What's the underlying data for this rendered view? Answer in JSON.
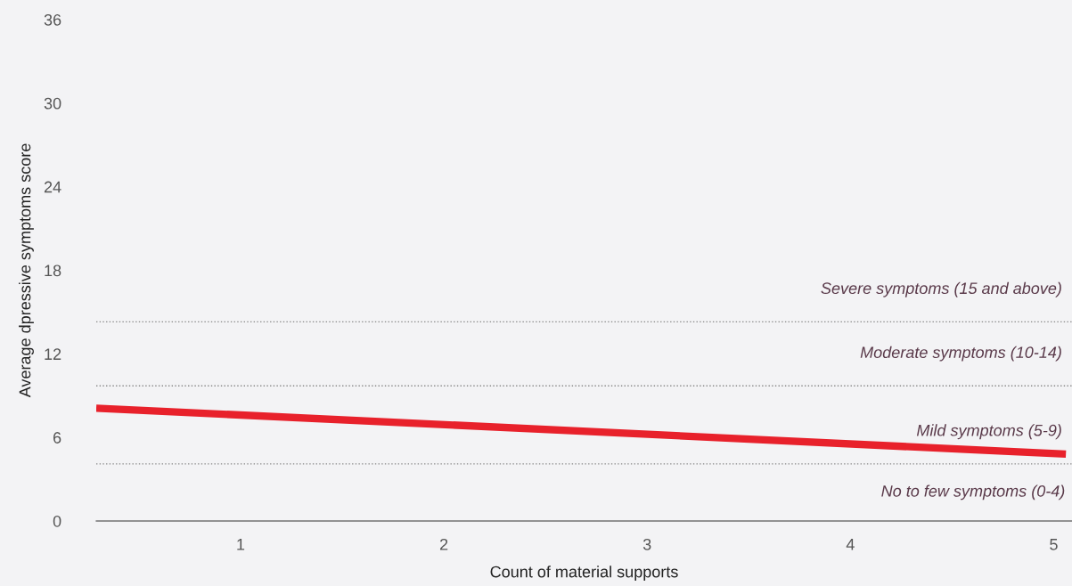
{
  "chart_data": {
    "type": "line",
    "xlabel": "Count of material supports",
    "ylabel": "Average dpressive symptoms score",
    "x": [
      0.29,
      5.06
    ],
    "series": [
      {
        "color": "#e8212b",
        "values": [
          8.1,
          4.8
        ]
      }
    ],
    "xlim": [
      0.29,
      5.09
    ],
    "xticks": [
      1,
      2,
      3,
      4,
      5
    ],
    "ylim": [
      0,
      36
    ],
    "yticks": [
      0,
      6,
      12,
      18,
      24,
      30,
      36
    ],
    "ref_lines": [
      {
        "axis": "y",
        "value": 14.3,
        "color": "#888888",
        "line_style": "dotted",
        "label": "Severe symptoms (15 and above)"
      },
      {
        "axis": "y",
        "value": 9.7,
        "color": "#888888",
        "line_style": "dotted",
        "label": "Moderate symptoms (10-14)"
      },
      {
        "axis": "y",
        "value": 4.1,
        "color": "#888888",
        "line_style": "dotted",
        "label": "Mild symptoms (5-9)"
      }
    ],
    "annotations": [
      "No to few symptoms (0-4)"
    ],
    "grid": false,
    "legend": false,
    "marker": "none",
    "line_style": "solid"
  }
}
